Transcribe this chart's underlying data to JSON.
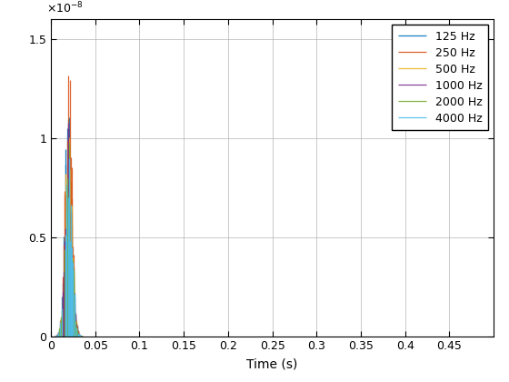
{
  "xlabel": "Time (s)",
  "xlim": [
    0,
    0.5
  ],
  "ylim": [
    0,
    1.6e-08
  ],
  "xticks": [
    0,
    0.05,
    0.1,
    0.15,
    0.2,
    0.25,
    0.3,
    0.35,
    0.4,
    0.45
  ],
  "xticklabels": [
    "0",
    "0.05",
    "0.1",
    "0.15",
    "0.2",
    "0.25",
    "0.3",
    "0.35",
    "0.4",
    "0.45"
  ],
  "yticks": [
    0,
    5e-09,
    1e-08,
    1.5e-08
  ],
  "yticklabels": [
    "0",
    "0.5",
    "1",
    "1.5"
  ],
  "legend_labels": [
    "125 Hz",
    "250 Hz",
    "500 Hz",
    "1000 Hz",
    "2000 Hz",
    "4000 Hz"
  ],
  "colors": [
    "#0072BD",
    "#D95319",
    "#EDB120",
    "#7E2F8E",
    "#77AC30",
    "#4DBEEE"
  ],
  "background_color": "#ffffff",
  "grid_color": "#b0b0b0",
  "max_amplitude": 1.48e-08,
  "peak_time": 0.02,
  "seed": 42
}
